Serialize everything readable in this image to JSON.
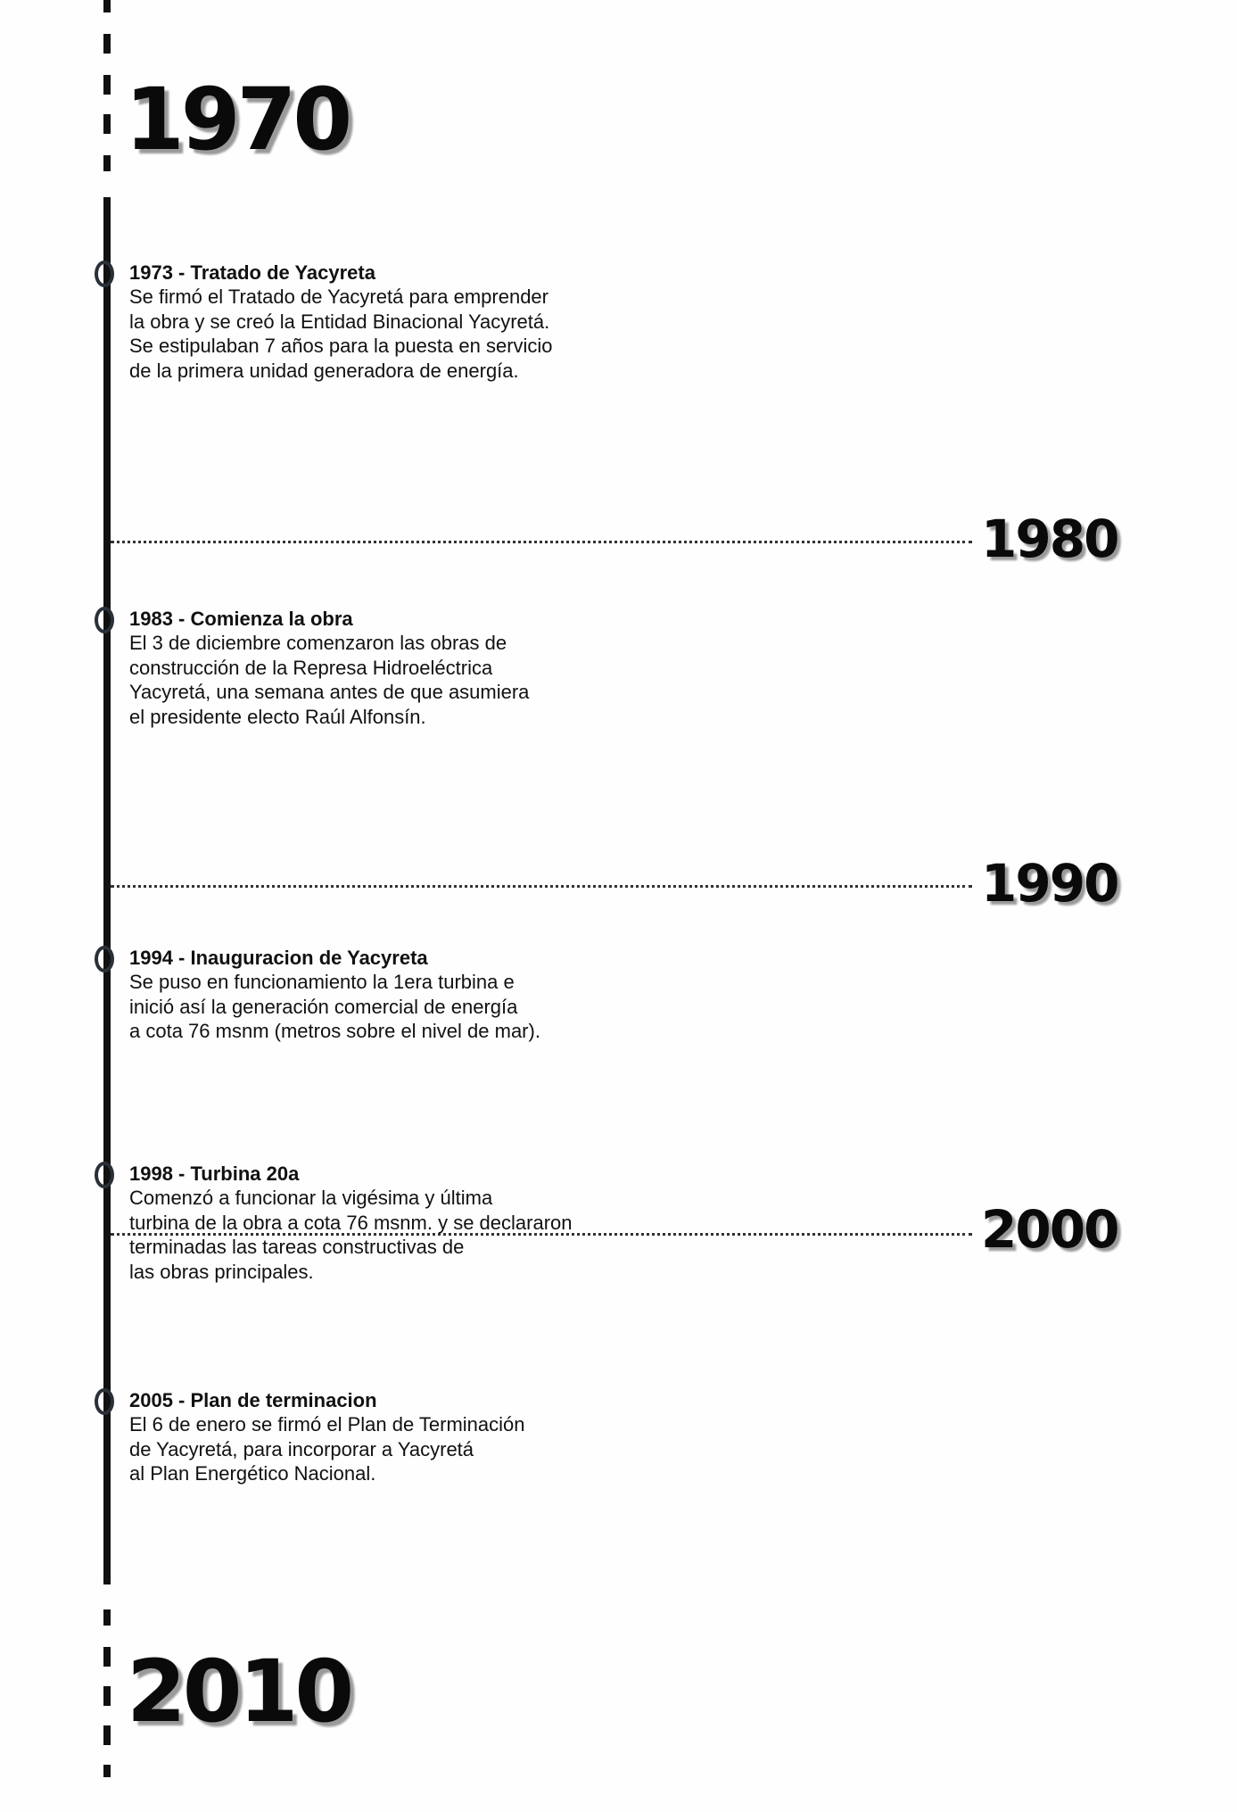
{
  "decades": {
    "d1970": "1970",
    "d1980": "1980",
    "d1990": "1990",
    "d2000": "2000",
    "d2010": "2010"
  },
  "events": [
    {
      "title": "1973 - Tratado de Yacyreta",
      "lines": [
        "Se firmó el Tratado de Yacyretá para emprender",
        "la obra y se creó la Entidad Binacional Yacyretá.",
        "Se estipulaban 7 años para la puesta en servicio",
        "de la primera unidad generadora de energía."
      ]
    },
    {
      "title": "1983 - Comienza la obra",
      "lines": [
        "El 3 de diciembre comenzaron las obras de",
        "construcción de la Represa Hidroeléctrica",
        "Yacyretá, una semana antes de que asumiera",
        "el presidente electo Raúl Alfonsín."
      ]
    },
    {
      "title": "1994 - Inauguracion de Yacyreta",
      "lines": [
        "Se puso en funcionamiento la 1era turbina e",
        "inició así la generación comercial de energía",
        "a cota 76 msnm (metros sobre el nivel de mar)."
      ]
    },
    {
      "title": "1998 - Turbina 20a",
      "lines": [
        "Comenzó a funcionar la vigésima y última",
        "turbina de la obra a cota 76 msnm. y se declararon",
        "terminadas las tareas constructivas de",
        "las obras principales."
      ]
    },
    {
      "title": "2005 - Plan de terminacion",
      "lines": [
        "El 6 de enero se firmó el Plan de Terminación",
        "de Yacyretá, para incorporar a Yacyretá",
        "al Plan Energético Nacional."
      ]
    }
  ]
}
